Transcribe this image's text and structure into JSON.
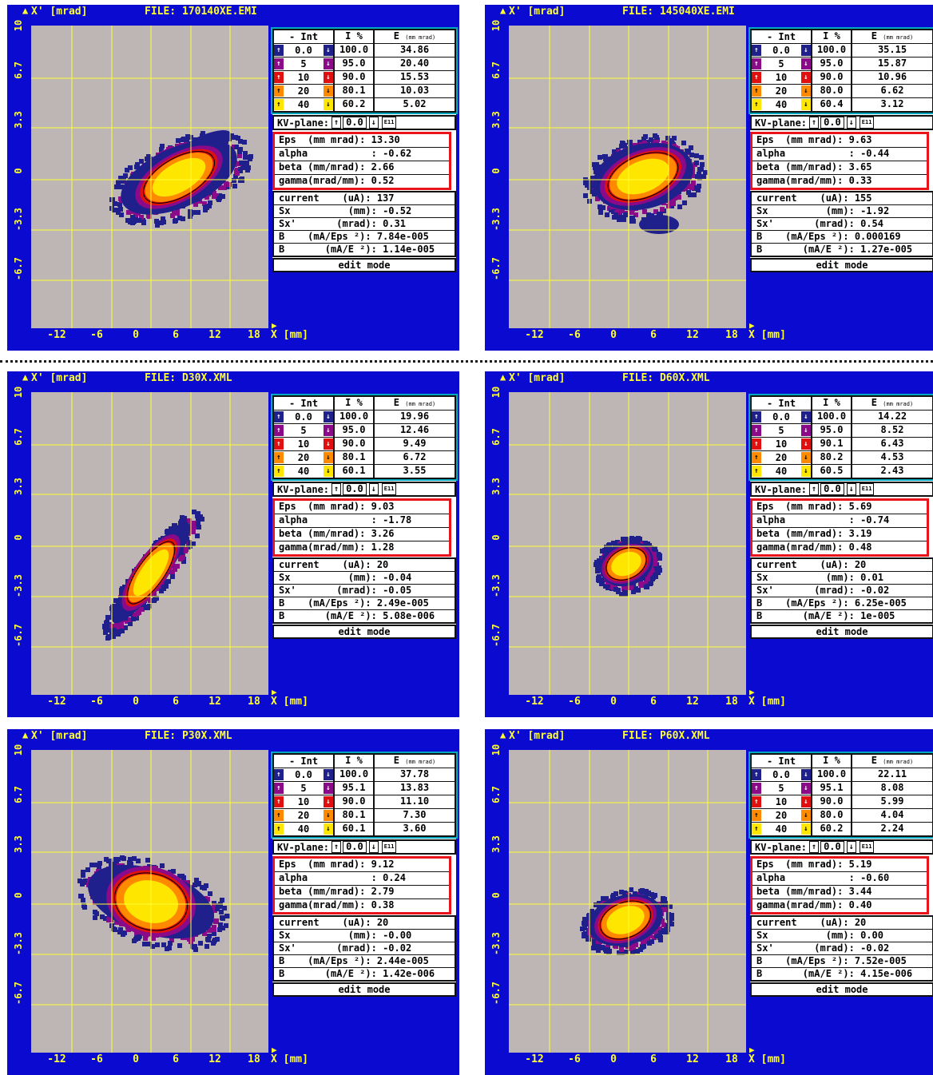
{
  "common": {
    "yaxis_label": "X' [mrad]",
    "xaxis_label": "X [mm]",
    "yticks": [
      "10",
      "6.7",
      "3.3",
      "0",
      "-3.3",
      "-6.7"
    ],
    "xticks": [
      "-12",
      "-6",
      "0",
      "6",
      "12",
      "18"
    ],
    "table_header": {
      "int": "- Int",
      "pct": "I %",
      "e": "E",
      "e_unit": "(mm mrad)"
    },
    "kv_label": "KV-plane:",
    "kv_up": "↑",
    "kv_value": "0.0",
    "kv_down": "↓",
    "kv_e": "E11",
    "edit_mode": "edit mode",
    "twiss_labels": [
      "Eps  (mm mrad):",
      "alpha           :",
      "beta (mm/mrad):",
      "gamma(mrad/mm):"
    ],
    "beam_labels": [
      "current    (uA):",
      "Sx          (mm):",
      "Sx'       (mrad):",
      "B    (mA/Eps ²):",
      "B       (mA/E ²):"
    ]
  },
  "panels": [
    {
      "file": "FILE: 170140XE.EMI",
      "int": [
        "0.0",
        "5",
        "10",
        "20",
        "40"
      ],
      "pct": [
        "100.0",
        "95.0",
        "90.0",
        "80.1",
        "60.2"
      ],
      "e": [
        "34.86",
        "20.40",
        "15.53",
        "10.03",
        "5.02"
      ],
      "twiss": [
        "13.30",
        "-0.62",
        "2.66",
        "0.52"
      ],
      "beam": [
        "137",
        "-0.52",
        "0.31",
        "7.84e-005",
        "1.14e-005"
      ]
    },
    {
      "file": "FILE: 145040XE.EMI",
      "int": [
        "0.0",
        "5",
        "10",
        "20",
        "40"
      ],
      "pct": [
        "100.0",
        "95.0",
        "90.0",
        "80.0",
        "60.4"
      ],
      "e": [
        "35.15",
        "15.87",
        "10.96",
        "6.62",
        "3.12"
      ],
      "twiss": [
        "9.63",
        "-0.44",
        "3.65",
        "0.33"
      ],
      "beam": [
        "155",
        "-1.92",
        "0.54",
        "0.000169",
        "1.27e-005"
      ]
    },
    {
      "file": "FILE: D30X.XML",
      "int": [
        "0.0",
        "5",
        "10",
        "20",
        "40"
      ],
      "pct": [
        "100.0",
        "95.0",
        "90.0",
        "80.1",
        "60.1"
      ],
      "e": [
        "19.96",
        "12.46",
        "9.49",
        "6.72",
        "3.55"
      ],
      "twiss": [
        "9.03",
        "-1.78",
        "3.26",
        "1.28"
      ],
      "beam": [
        "20",
        "-0.04",
        "-0.05",
        "2.49e-005",
        "5.08e-006"
      ]
    },
    {
      "file": "FILE: D60X.XML",
      "int": [
        "0.0",
        "5",
        "10",
        "20",
        "40"
      ],
      "pct": [
        "100.0",
        "95.0",
        "90.1",
        "80.2",
        "60.5"
      ],
      "e": [
        "14.22",
        "8.52",
        "6.43",
        "4.53",
        "2.43"
      ],
      "twiss": [
        "5.69",
        "-0.74",
        "3.19",
        "0.48"
      ],
      "beam": [
        "20",
        "0.01",
        "-0.02",
        "6.25e-005",
        "1e-005"
      ]
    },
    {
      "file": "FILE: P30X.XML",
      "int": [
        "0.0",
        "5",
        "10",
        "20",
        "40"
      ],
      "pct": [
        "100.0",
        "95.1",
        "90.0",
        "80.1",
        "60.1"
      ],
      "e": [
        "37.78",
        "13.83",
        "11.10",
        "7.30",
        "3.60"
      ],
      "twiss": [
        "9.12",
        "0.24",
        "2.79",
        "0.38"
      ],
      "beam": [
        "20",
        "-0.00",
        "-0.02",
        "2.44e-005",
        "1.42e-006"
      ]
    },
    {
      "file": "FILE: P60X.XML",
      "int": [
        "0.0",
        "5",
        "10",
        "20",
        "40"
      ],
      "pct": [
        "100.0",
        "95.1",
        "90.0",
        "80.0",
        "60.2"
      ],
      "e": [
        "22.11",
        "8.08",
        "5.99",
        "4.04",
        "2.24"
      ],
      "twiss": [
        "5.19",
        "-0.60",
        "3.44",
        "0.40"
      ],
      "beam": [
        "20",
        "0.00",
        "-0.02",
        "7.52e-005",
        "4.15e-006"
      ]
    }
  ],
  "colors": {
    "background": "#0a0ad0",
    "plot_bg": "#bdb6b4",
    "grid": "#ffff33",
    "level_colors": [
      "#20208c",
      "#8a0a8a",
      "#e01010",
      "#ff8a00",
      "#ffe600"
    ],
    "highlight_box": "#e8141a"
  }
}
